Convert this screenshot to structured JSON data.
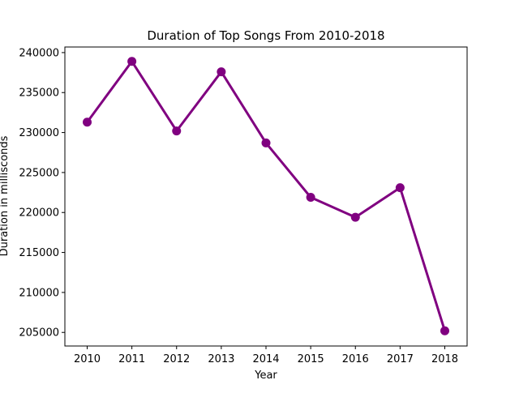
{
  "chart_data": {
    "type": "line",
    "title": "Duration of Top Songs From 2010-2018",
    "xlabel": "Year",
    "ylabel": "Duration in millisconds",
    "x": [
      "2010",
      "2011",
      "2012",
      "2013",
      "2014",
      "2015",
      "2016",
      "2017",
      "2018"
    ],
    "series": [
      {
        "values": [
          231300,
          238900,
          230200,
          237600,
          228700,
          221900,
          219400,
          223100,
          205200
        ],
        "color": "#800080"
      }
    ],
    "yticks": [
      205000,
      210000,
      215000,
      220000,
      225000,
      230000,
      235000,
      240000
    ],
    "ylim": [
      203300,
      240700
    ],
    "grid": false,
    "legend": "none"
  }
}
